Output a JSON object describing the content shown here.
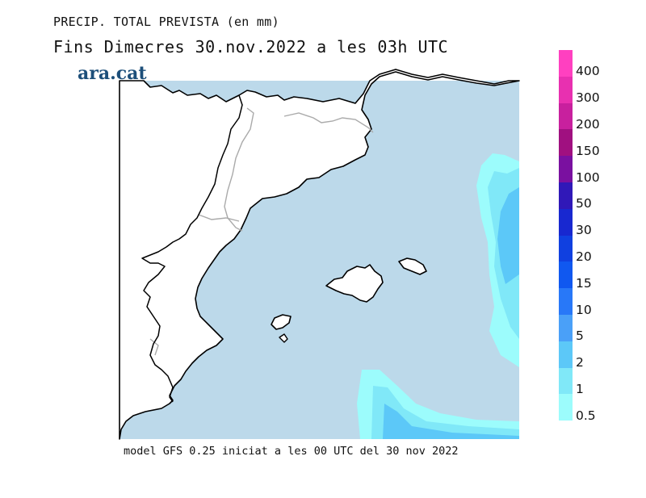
{
  "header": {
    "title_line1": "PRECIP. TOTAL PREVISTA (en mm)",
    "title_line2": "Fins Dimecres  30.nov.2022 a les 03h UTC",
    "brand": "ara.cat"
  },
  "footer": {
    "text": "model GFS 0.25 iniciat a les 00 UTC del 30 nov 2022"
  },
  "legend": {
    "levels": [
      {
        "label": "400",
        "color": "#ff40c0"
      },
      {
        "label": "300",
        "color": "#e830b0"
      },
      {
        "label": "200",
        "color": "#c8209e"
      },
      {
        "label": "150",
        "color": "#a01080"
      },
      {
        "label": "100",
        "color": "#7a10a0"
      },
      {
        "label": "50",
        "color": "#3018b8"
      },
      {
        "label": "30",
        "color": "#1828d0"
      },
      {
        "label": "20",
        "color": "#1040e0"
      },
      {
        "label": "15",
        "color": "#1058f0"
      },
      {
        "label": "10",
        "color": "#2878f8"
      },
      {
        "label": "5",
        "color": "#4aa0f8"
      },
      {
        "label": "2",
        "color": "#5cc8f8"
      },
      {
        "label": "1",
        "color": "#80e8f8"
      },
      {
        "label": "0.5",
        "color": "#9cfcfc"
      }
    ]
  },
  "colors": {
    "sea_background": "#bcd9ea",
    "land": "#ffffff",
    "coastline": "#000000",
    "borders": "#aaaaaa"
  }
}
